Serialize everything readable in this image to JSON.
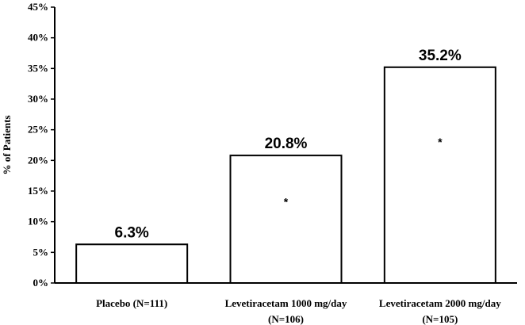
{
  "chart_data": {
    "type": "bar",
    "ylabel": "% of Patients",
    "ylim": [
      0,
      45
    ],
    "ytick_step": 5,
    "ytick_labels": [
      "0%",
      "5%",
      "10%",
      "15%",
      "20%",
      "25%",
      "30%",
      "35%",
      "40%",
      "45%"
    ],
    "categories": [
      [
        "Placebo (N=111)"
      ],
      [
        "Levetiracetam 1000 mg/day",
        "(N=106)"
      ],
      [
        "Levetiracetam 2000 mg/day",
        "(N=105)"
      ]
    ],
    "values": [
      6.3,
      20.8,
      35.2
    ],
    "data_labels": [
      "6.3%",
      "20.8%",
      "35.2%"
    ],
    "markers": [
      "",
      "*",
      "*"
    ],
    "colors": {
      "bar_fill": "#ffffff",
      "bar_stroke": "#000000",
      "axis": "#000000"
    }
  }
}
